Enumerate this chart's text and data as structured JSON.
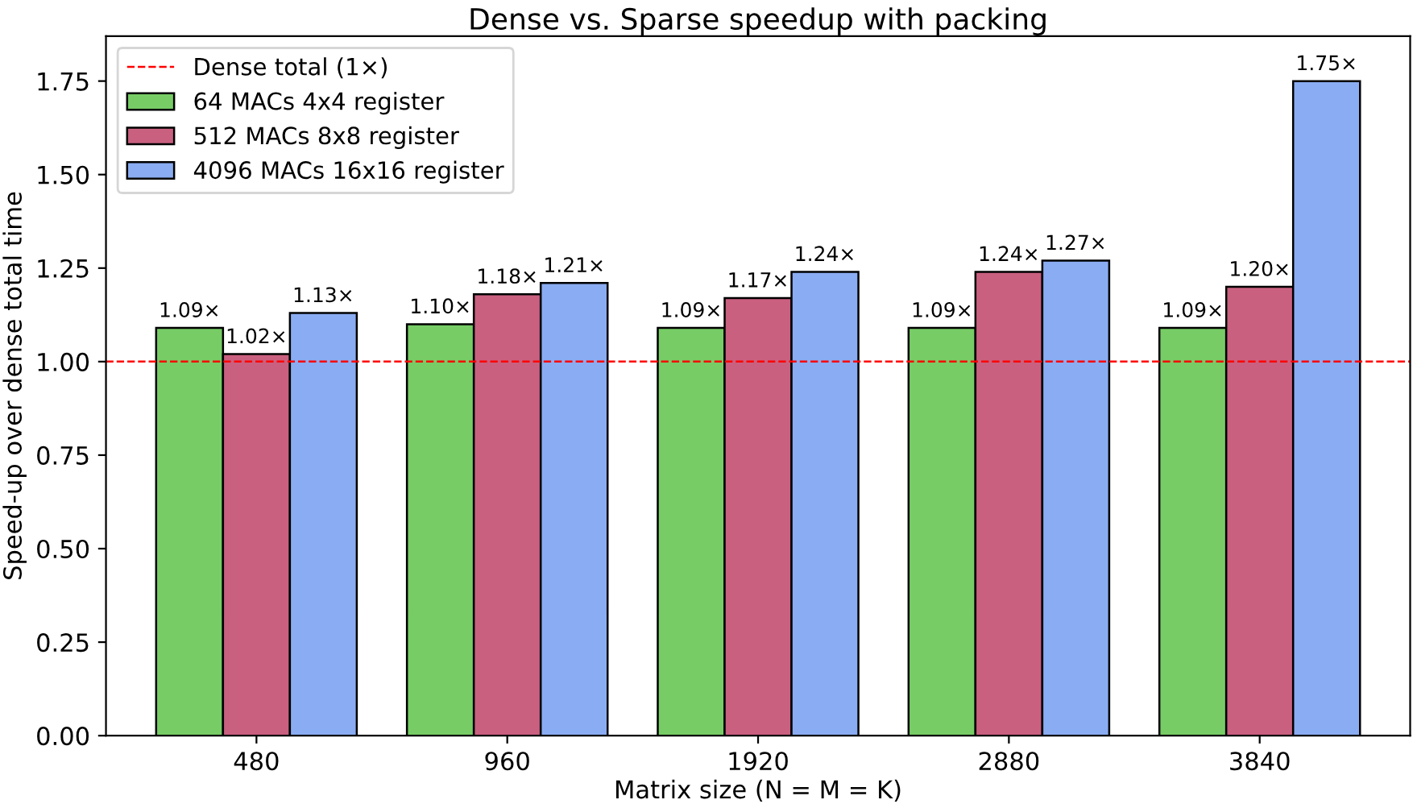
{
  "chart_data": {
    "type": "bar",
    "title": "Dense vs. Sparse speedup with packing",
    "xlabel": "Matrix size (N = M = K)",
    "ylabel": "Speed-up over dense total time",
    "categories": [
      "480",
      "960",
      "1920",
      "2880",
      "3840"
    ],
    "series": [
      {
        "name": "64 MACs 4x4 register",
        "color": "#77cc66",
        "values": [
          1.09,
          1.1,
          1.09,
          1.09,
          1.09
        ],
        "value_labels": [
          "1.09×",
          "1.10×",
          "1.09×",
          "1.09×",
          "1.09×"
        ]
      },
      {
        "name": "512 MACs 8x8 register",
        "color": "#c96080",
        "values": [
          1.02,
          1.18,
          1.17,
          1.24,
          1.2
        ],
        "value_labels": [
          "1.02×",
          "1.18×",
          "1.17×",
          "1.24×",
          "1.20×"
        ]
      },
      {
        "name": "4096 MACs 16x16 register",
        "color": "#8aacf2",
        "values": [
          1.13,
          1.21,
          1.24,
          1.27,
          1.75
        ],
        "value_labels": [
          "1.13×",
          "1.21×",
          "1.24×",
          "1.27×",
          "1.75×"
        ]
      }
    ],
    "ref_lines": [
      {
        "axis": "y",
        "value": 1,
        "label": "Dense total (1×)",
        "color": "#ff0000",
        "line_style": "dashed"
      }
    ],
    "ylim": [
      0,
      1.87
    ],
    "yticks": [
      {
        "value": 0,
        "label": "0.00"
      },
      0.25,
      {
        "value": 0.5,
        "label": "0.50"
      },
      0.75,
      {
        "value": 1,
        "label": "1.00"
      },
      1.25,
      {
        "value": 1.5,
        "label": "1.50"
      },
      1.75
    ],
    "legend": "top left",
    "grid": false
  }
}
